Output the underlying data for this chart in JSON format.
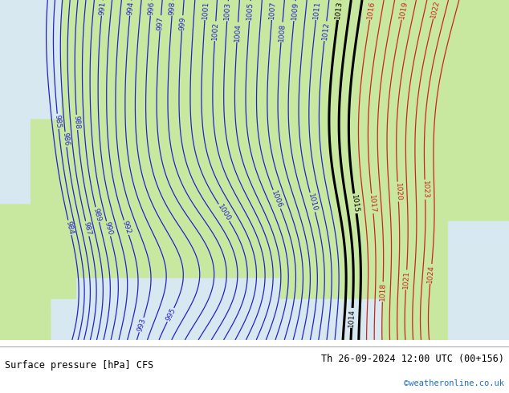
{
  "title_left": "Surface pressure [hPa] CFS",
  "title_right": "Th 26-09-2024 12:00 UTC (00+156)",
  "credit": "©weatheronline.co.uk",
  "land_color": "#c8e8a0",
  "sea_color": "#d8e8f0",
  "figsize": [
    6.34,
    4.9
  ],
  "dpi": 100,
  "footer_bg": "#ffffff",
  "blue_contour_color": "#2222cc",
  "red_contour_color": "#cc2222",
  "black_contour_color": "#000000",
  "blue_levels": [
    984,
    985,
    986,
    987,
    988,
    989,
    990,
    991,
    992,
    993,
    994,
    995,
    996,
    997,
    998,
    999,
    1000,
    1001,
    1002,
    1003,
    1004,
    1005,
    1006,
    1007,
    1008,
    1009,
    1010,
    1011,
    1012
  ],
  "black_levels": [
    1013,
    1014,
    1015
  ],
  "red_levels": [
    1016,
    1017,
    1018,
    1019,
    1020,
    1021,
    1022,
    1023,
    1024
  ],
  "label_fontsize": 6.5,
  "footer_fontsize": 8.5,
  "credit_fontsize": 7.5,
  "credit_color": "#1a6fcc"
}
